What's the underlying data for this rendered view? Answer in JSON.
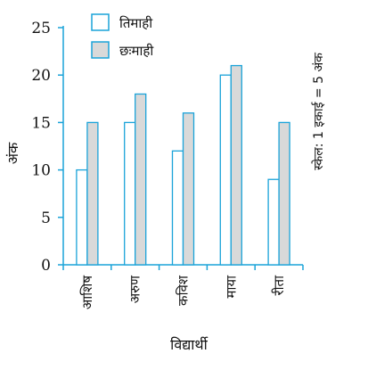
{
  "chart_data": {
    "type": "bar",
    "categories": [
      "आशिष",
      "अरुण",
      "कविश",
      "माया",
      "रीता"
    ],
    "series": [
      {
        "name": "तिमाही",
        "values": [
          10,
          15,
          12,
          20,
          9
        ],
        "fill": "#ffffff",
        "stroke": "#1aa3d9"
      },
      {
        "name": "छःमाही",
        "values": [
          15,
          18,
          16,
          21,
          15
        ],
        "fill": "#d9d9d9",
        "stroke": "#1aa3d9"
      }
    ],
    "xlabel": "विद्यार्थी",
    "ylabel": "अंक",
    "ylim": [
      0,
      25
    ],
    "yticks": [
      0,
      5,
      10,
      15,
      20,
      25
    ],
    "scale_note": "स्केल: 1 इकाई = 5 अंक",
    "legend_position": "top",
    "grid": false,
    "axis_color": "#1aa3d9"
  }
}
